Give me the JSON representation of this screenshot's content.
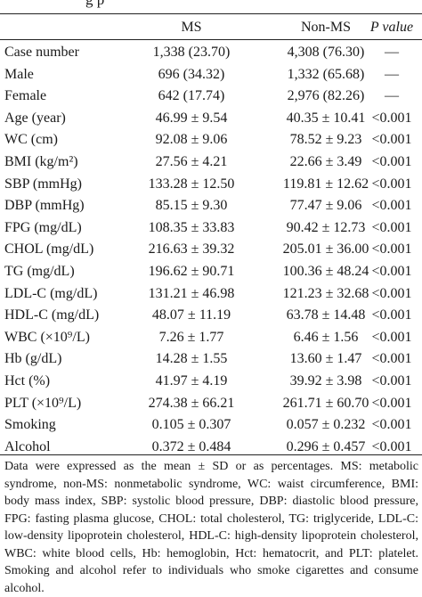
{
  "cut_title": "g p",
  "table": {
    "headers": [
      "",
      "MS",
      "Non-MS",
      "P value"
    ],
    "rows": [
      [
        "Case number",
        "1,338 (23.70)",
        "4,308 (76.30)",
        "—"
      ],
      [
        "Male",
        "696 (34.32)",
        "1,332 (65.68)",
        "—"
      ],
      [
        "Female",
        "642 (17.74)",
        "2,976 (82.26)",
        "—"
      ],
      [
        "Age (year)",
        "46.99 ± 9.54",
        "40.35 ± 10.41",
        "<0.001"
      ],
      [
        "WC (cm)",
        "92.08 ± 9.06",
        "78.52 ± 9.23",
        "<0.001"
      ],
      [
        "BMI (kg/m²)",
        "27.56 ± 4.21",
        "22.66 ± 3.49",
        "<0.001"
      ],
      [
        "SBP (mmHg)",
        "133.28 ± 12.50",
        "119.81 ± 12.62",
        "<0.001"
      ],
      [
        "DBP (mmHg)",
        "85.15 ± 9.30",
        "77.47 ± 9.06",
        "<0.001"
      ],
      [
        "FPG (mg/dL)",
        "108.35 ± 33.83",
        "90.42 ± 12.73",
        "<0.001"
      ],
      [
        "CHOL (mg/dL)",
        "216.63 ± 39.32",
        "205.01 ± 36.00",
        "<0.001"
      ],
      [
        "TG (mg/dL)",
        "196.62 ± 90.71",
        "100.36 ± 48.24",
        "<0.001"
      ],
      [
        "LDL-C (mg/dL)",
        "131.21 ± 46.98",
        "121.23 ± 32.68",
        "<0.001"
      ],
      [
        "HDL-C (mg/dL)",
        "48.07 ± 11.19",
        "63.78 ± 14.48",
        "<0.001"
      ],
      [
        "WBC (×10⁹/L)",
        "7.26 ± 1.77",
        "6.46 ± 1.56",
        "<0.001"
      ],
      [
        "Hb (g/dL)",
        "14.28 ± 1.55",
        "13.60 ± 1.47",
        "<0.001"
      ],
      [
        "Hct (%)",
        "41.97 ± 4.19",
        "39.92 ± 3.98",
        "<0.001"
      ],
      [
        "PLT (×10⁹/L)",
        "274.38 ± 66.21",
        "261.71 ± 60.70",
        "<0.001"
      ],
      [
        "Smoking",
        "0.105 ± 0.307",
        "0.057 ± 0.232",
        "<0.001"
      ],
      [
        "Alcohol",
        "0.372 ± 0.484",
        "0.296 ± 0.457",
        "<0.001"
      ]
    ]
  },
  "footnote": "Data were expressed as the mean ± SD or as percentages. MS: metabolic syndrome, non-MS: nonmetabolic syndrome, WC: waist circumference, BMI: body mass index, SBP: systolic blood pressure, DBP: diastolic blood pressure, FPG: fasting plasma glucose, CHOL: total cholesterol, TG: triglyceride, LDL-C: low-density lipoprotein cholesterol, HDL-C: high-density lipoprotein cholesterol, WBC: white blood cells, Hb: hemoglobin, Hct: hematocrit, and PLT: platelet. Smoking and alcohol refer to individuals who smoke cigarettes and consume alcohol."
}
